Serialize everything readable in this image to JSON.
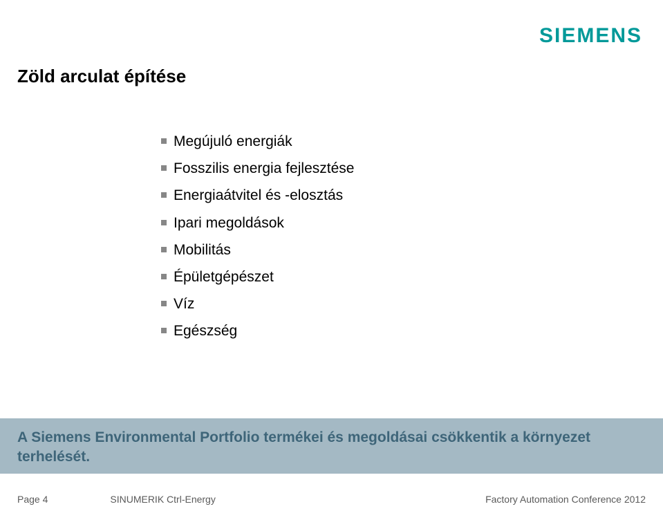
{
  "colors": {
    "siemens_teal": "#009999",
    "bullet_gray": "#878787",
    "summary_band_bg": "#a4b9c4",
    "summary_text": "#3e6579",
    "footer_text": "#5a5a5a"
  },
  "header": {
    "title": "Zöld arculat építése",
    "logo_text": "SIEMENS"
  },
  "bullets": [
    "Megújuló energiák",
    "Fosszilis energia fejlesztése",
    "Energiaátvitel és -elosztás",
    "Ipari megoldások",
    "Mobilitás",
    "Épületgépészet",
    "Víz",
    "Egészség"
  ],
  "summary": "A Siemens Environmental Portfolio termékei és megoldásai csökkentik a környezet terhelését.",
  "footer": {
    "page": "Page 4",
    "center": "SINUMERIK Ctrl-Energy",
    "right": "Factory Automation Conference 2012"
  }
}
